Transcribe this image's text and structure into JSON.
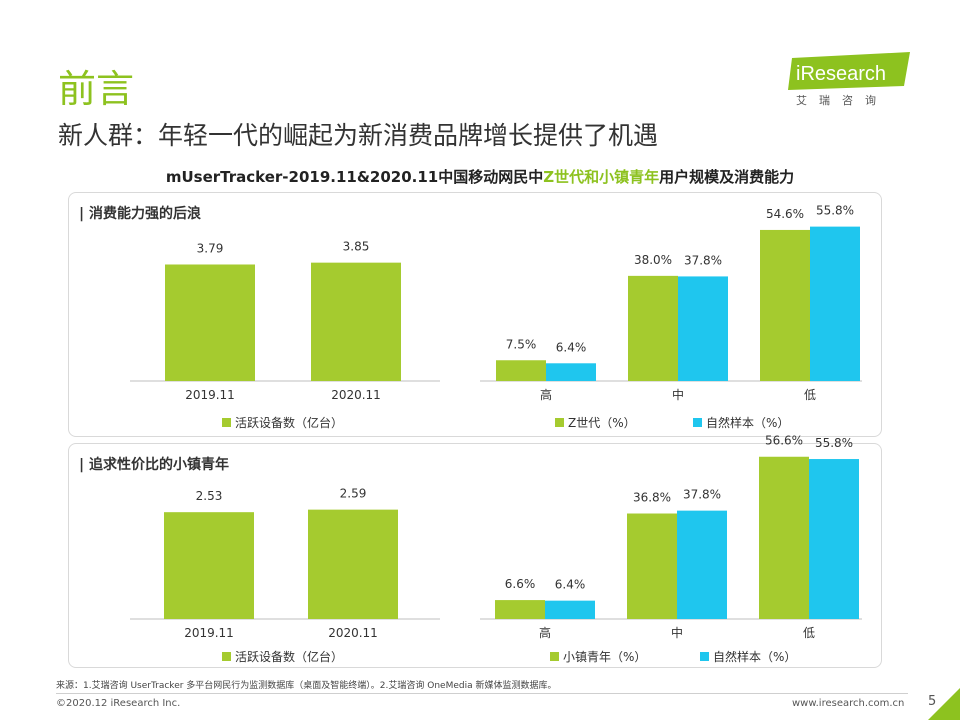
{
  "page": {
    "title": "前言",
    "subtitle": "新人群：年轻一代的崛起为新消费品牌增长提供了机遇",
    "chart_title_pre": "mUserTracker-2019.11&2020.11中国移动网民中",
    "chart_title_hl": "Z世代和小镇青年",
    "chart_title_post": "用户规模及消费能力",
    "logo_text": "iResearch",
    "logo_sub": "艾瑞咨询",
    "source": "来源：1.艾瑞咨询 UserTracker 多平台网民行为监测数据库（桌面及智能终端）。2.艾瑞咨询 OneMedia 新媒体监测数据库。",
    "copyright": "©2020.12 iResearch Inc.",
    "website": "www.iresearch.com.cn",
    "page_number": "5"
  },
  "colors": {
    "green": "#a5cb2f",
    "blue": "#1fc6ee",
    "accent": "#8dc21f"
  },
  "panels": [
    {
      "title": "| 消费能力强的后浪"
    },
    {
      "title": "| 追求性价比的小镇青年"
    }
  ],
  "chart_data": [
    {
      "type": "bar",
      "title": "消费能力强的后浪",
      "categories": [
        "2019.11",
        "2020.11"
      ],
      "values": [
        3.79,
        3.85
      ],
      "value_labels": [
        "3.79",
        "3.85"
      ],
      "legend": "活跃设备数（亿台）",
      "ylim": [
        0,
        5.4
      ]
    },
    {
      "type": "bar",
      "title": "消费能力强的后浪",
      "categories": [
        "高",
        "中",
        "低"
      ],
      "series": [
        {
          "name": "Z世代（%）",
          "values": [
            7.5,
            38.0,
            54.6
          ],
          "labels": [
            "7.5%",
            "38.0%",
            "54.6%"
          ]
        },
        {
          "name": "自然样本（%）",
          "values": [
            6.4,
            37.8,
            55.8
          ],
          "labels": [
            "6.4%",
            "37.8%",
            "55.8%"
          ]
        }
      ],
      "ylim": [
        0,
        60
      ]
    },
    {
      "type": "bar",
      "title": "追求性价比的小镇青年",
      "categories": [
        "2019.11",
        "2020.11"
      ],
      "values": [
        2.53,
        2.59
      ],
      "value_labels": [
        "2.53",
        "2.59"
      ],
      "legend": "活跃设备数（亿台）",
      "ylim": [
        0,
        3.6
      ]
    },
    {
      "type": "bar",
      "title": "追求性价比的小镇青年",
      "categories": [
        "高",
        "中",
        "低"
      ],
      "series": [
        {
          "name": "小镇青年（%）",
          "values": [
            6.6,
            36.8,
            56.6
          ],
          "labels": [
            "6.6%",
            "36.8%",
            "56.6%"
          ]
        },
        {
          "name": "自然样本（%）",
          "values": [
            6.4,
            37.8,
            55.8
          ],
          "labels": [
            "6.4%",
            "37.8%",
            "55.8%"
          ]
        }
      ],
      "ylim": [
        0,
        60
      ]
    }
  ]
}
